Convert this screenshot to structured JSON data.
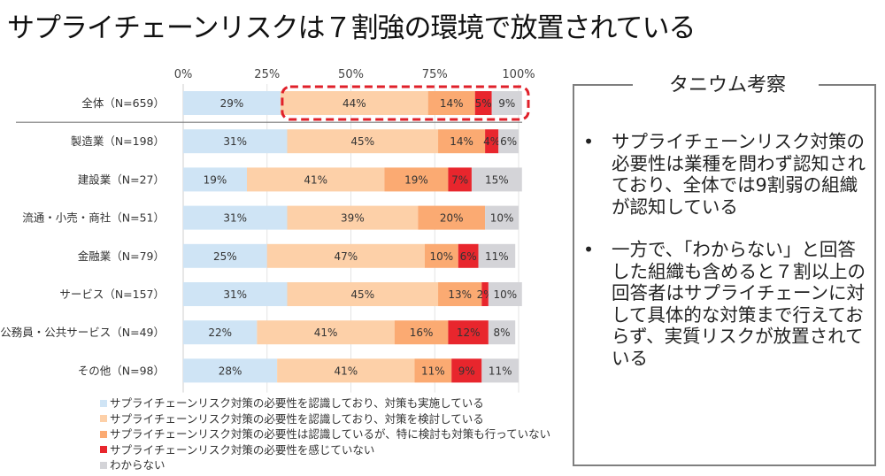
{
  "title": "サプライチェーンリスクは７割強の環境で放置されている",
  "chart_data": {
    "type": "bar",
    "orientation": "horizontal",
    "stacked": "percent",
    "categories": [
      "全体（N=659）",
      "製造業（N=198）",
      "建設業（N=27）",
      "流通・小売・商社（N=51）",
      "金融業（N=79）",
      "サービス（N=157）",
      "公務員・公共サービス（N=49）",
      "その他（N=98）"
    ],
    "series": [
      {
        "name": "サプライチェーンリスク対策の必要性を認識しており、対策も実施している",
        "color": "#cfe4f5",
        "values": [
          29,
          31,
          19,
          31,
          25,
          31,
          22,
          28
        ]
      },
      {
        "name": "サプライチェーンリスク対策の必要性を認識しており、対策を検討している",
        "color": "#fdd0a8",
        "values": [
          44,
          45,
          41,
          39,
          47,
          45,
          41,
          41
        ]
      },
      {
        "name": "サプライチェーンリスク対策の必要性は認識しているが、特に検討も対策も行っていない",
        "color": "#fbaa72",
        "values": [
          14,
          14,
          19,
          20,
          10,
          13,
          16,
          11
        ]
      },
      {
        "name": "サプライチェーンリスク対策の必要性を感じていない",
        "color": "#e8262d",
        "values": [
          5,
          4,
          7,
          0,
          6,
          2,
          12,
          9
        ]
      },
      {
        "name": "わからない",
        "color": "#d4d4d8",
        "values": [
          9,
          6,
          15,
          10,
          11,
          10,
          8,
          11
        ]
      }
    ],
    "data_labels": [
      [
        "29%",
        "44%",
        "14%",
        "5%",
        "9%"
      ],
      [
        "31%",
        "45%",
        "14%",
        "4%",
        "6%"
      ],
      [
        "19%",
        "41%",
        "19%",
        "7%",
        "15%"
      ],
      [
        "31%",
        "39%",
        "20%",
        "",
        "10%"
      ],
      [
        "25%",
        "47%",
        "10%",
        "6%",
        "11%"
      ],
      [
        "31%",
        "45%",
        "13%",
        "2%",
        "10%"
      ],
      [
        "22%",
        "41%",
        "16%",
        "12%",
        "8%"
      ],
      [
        "28%",
        "41%",
        "11%",
        "9%",
        "11%"
      ]
    ],
    "x_ticks": [
      "0%",
      "25%",
      "50%",
      "75%",
      "100%"
    ],
    "xlim": [
      0,
      100
    ],
    "grid": true,
    "legend_position": "bottom",
    "highlight": {
      "category_index": 0,
      "from_series": 1,
      "to_series": 4,
      "style": "red-dashed-box"
    }
  },
  "panel": {
    "title": "タニウム考察",
    "bullets": [
      "サプライチェーンリスク対策の必要性は業種を問わず認知されており、全体では9割弱の組織が認知している",
      "一方で、「わからない」と回答した組織も含めると７割以上の回答者はサプライチェーンに対して具体的な対策まで行えておらず、実質リスクが放置されている"
    ],
    "bullet_symbol": "•"
  }
}
